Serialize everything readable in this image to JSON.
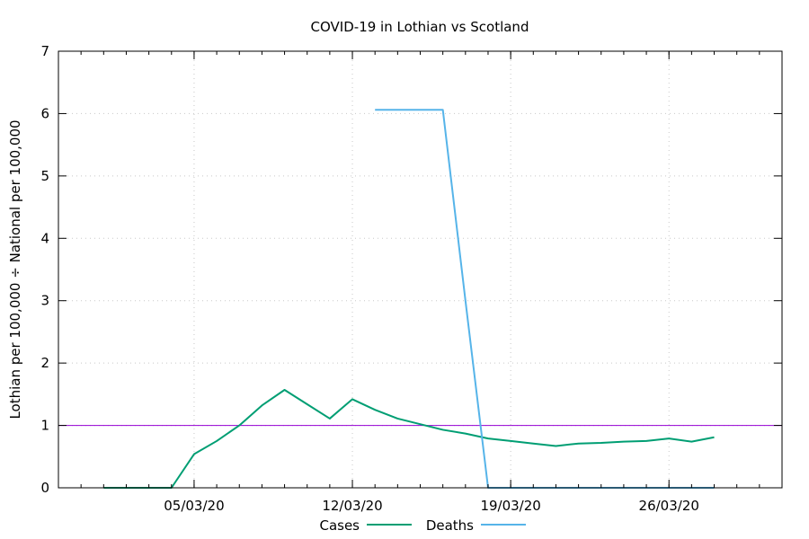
{
  "chart_data": {
    "type": "line",
    "title": "COVID-19 in Lothian vs Scotland",
    "xlabel": "",
    "ylabel": "Lothian per 100,000 ÷ National per 100,000",
    "ylim": [
      0,
      7
    ],
    "xlim": [
      "2020-02-28",
      "2020-03-31"
    ],
    "x_ticks": [
      {
        "date": "2020-03-05",
        "label": "05/03/20"
      },
      {
        "date": "2020-03-12",
        "label": "12/03/20"
      },
      {
        "date": "2020-03-19",
        "label": "19/03/20"
      },
      {
        "date": "2020-03-26",
        "label": "26/03/20"
      }
    ],
    "y_ticks": [
      0,
      1,
      2,
      3,
      4,
      5,
      6,
      7
    ],
    "grid": true,
    "legend_position": "bottom-center",
    "reference_line": {
      "y": 1,
      "color": "#9400d3"
    },
    "series": [
      {
        "name": "Cases",
        "color": "#009e73",
        "points": [
          [
            "2020-03-01",
            0
          ],
          [
            "2020-03-02",
            0
          ],
          [
            "2020-03-03",
            0
          ],
          [
            "2020-03-04",
            0
          ],
          [
            "2020-03-05",
            0.54
          ],
          [
            "2020-03-06",
            0.75
          ],
          [
            "2020-03-07",
            1.0
          ],
          [
            "2020-03-08",
            1.32
          ],
          [
            "2020-03-09",
            1.57
          ],
          [
            "2020-03-10",
            1.34
          ],
          [
            "2020-03-11",
            1.11
          ],
          [
            "2020-03-12",
            1.42
          ],
          [
            "2020-03-13",
            1.25
          ],
          [
            "2020-03-14",
            1.11
          ],
          [
            "2020-03-15",
            1.02
          ],
          [
            "2020-03-16",
            0.93
          ],
          [
            "2020-03-17",
            0.87
          ],
          [
            "2020-03-18",
            0.79
          ],
          [
            "2020-03-19",
            0.75
          ],
          [
            "2020-03-20",
            0.71
          ],
          [
            "2020-03-21",
            0.67
          ],
          [
            "2020-03-22",
            0.71
          ],
          [
            "2020-03-23",
            0.72
          ],
          [
            "2020-03-24",
            0.74
          ],
          [
            "2020-03-25",
            0.75
          ],
          [
            "2020-03-26",
            0.79
          ],
          [
            "2020-03-27",
            0.74
          ],
          [
            "2020-03-28",
            0.81
          ]
        ]
      },
      {
        "name": "Deaths",
        "color": "#56b4e9",
        "points": [
          [
            "2020-03-13",
            6.06
          ],
          [
            "2020-03-14",
            6.06
          ],
          [
            "2020-03-15",
            6.06
          ],
          [
            "2020-03-16",
            6.06
          ],
          [
            "2020-03-17",
            3.0
          ],
          [
            "2020-03-18",
            0
          ],
          [
            "2020-03-19",
            0
          ],
          [
            "2020-03-20",
            0
          ],
          [
            "2020-03-21",
            0
          ],
          [
            "2020-03-22",
            0
          ],
          [
            "2020-03-23",
            0
          ],
          [
            "2020-03-24",
            0
          ],
          [
            "2020-03-25",
            0
          ],
          [
            "2020-03-26",
            0
          ],
          [
            "2020-03-27",
            0
          ],
          [
            "2020-03-28",
            0
          ]
        ]
      }
    ]
  }
}
